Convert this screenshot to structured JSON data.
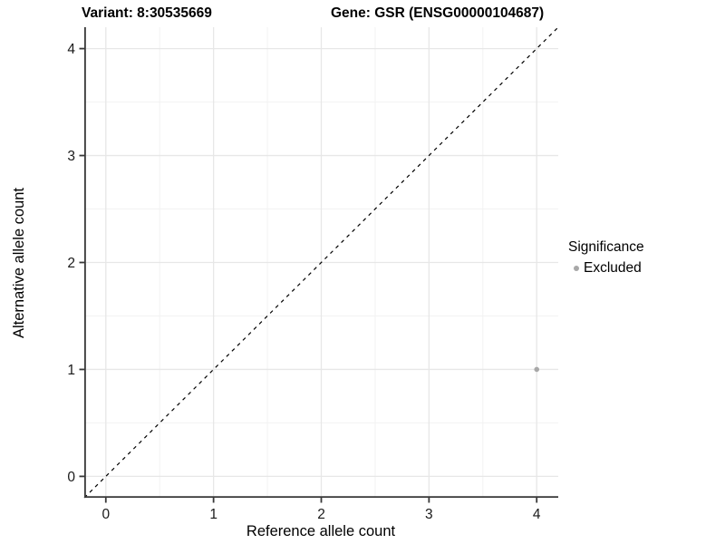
{
  "header": {
    "variant_title": "Variant: 8:30535669",
    "gene_title": "Gene: GSR (ENSG00000104687)"
  },
  "legend": {
    "title": "Significance",
    "items": [
      {
        "label": "Excluded",
        "color": "#a8a8a8"
      }
    ]
  },
  "chart_data": {
    "type": "scatter",
    "xlabel": "Reference allele count",
    "ylabel": "Alternative allele count",
    "xlim": [
      -0.2,
      4.2
    ],
    "ylim": [
      -0.2,
      4.2
    ],
    "xticks": [
      0,
      1,
      2,
      3,
      4
    ],
    "yticks": [
      0,
      1,
      2,
      3,
      4
    ],
    "xtick_labels": [
      "0",
      "1",
      "2",
      "3",
      "4"
    ],
    "ytick_labels": [
      "0",
      "1",
      "2",
      "3",
      "4"
    ],
    "minor_grid_positions": [
      0.5,
      1.5,
      2.5,
      3.5
    ],
    "grid": true,
    "legend_position": "right",
    "identity_line": {
      "style": "dashed",
      "color": "#000000",
      "x1": -0.2,
      "y1": -0.2,
      "x2": 4.2,
      "y2": 4.2
    },
    "series": [
      {
        "name": "Excluded",
        "color": "#a8a8a8",
        "points": [
          {
            "x": 4,
            "y": 1
          }
        ]
      }
    ]
  },
  "colors": {
    "background": "#ffffff",
    "major_grid": "#e7e7e7",
    "minor_grid": "#f2f2f2",
    "axis_line": "#383838",
    "tick_text": "#1a1a1a",
    "point": "#a8a8a8",
    "identity_line": "#000000"
  }
}
